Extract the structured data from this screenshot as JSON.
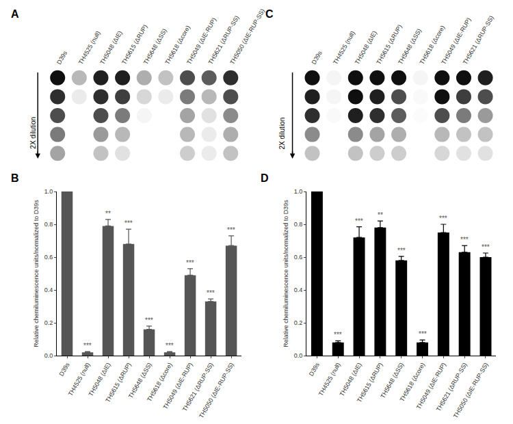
{
  "chart_data": [
    {
      "type": "dot_blot",
      "title": "A",
      "categories": [
        "D39s",
        "TH4525 (null)",
        "TH5048 (ΔIE)",
        "TH5615 (ΔRUP)",
        "TH5648 (ΔSS)",
        "TH5618 (Δcore)",
        "TH5049 (ΔIE-RUP)",
        "TH5621 (ΔRUP-SS)",
        "TH5050 (ΔIE-RUP-SS)"
      ],
      "intensity": [
        [
          0.95,
          0.35,
          0.9,
          0.9,
          0.4,
          0.3,
          0.75,
          0.7,
          0.85
        ],
        [
          0.85,
          0.1,
          0.85,
          0.8,
          0.2,
          0.1,
          0.6,
          0.35,
          0.75
        ],
        [
          0.75,
          0,
          0.75,
          0.6,
          0.05,
          0,
          0.45,
          0.15,
          0.55
        ],
        [
          0.6,
          0,
          0.5,
          0.35,
          0,
          0,
          0.35,
          0.1,
          0.4
        ],
        [
          0.45,
          0,
          0.3,
          0.15,
          0,
          0,
          0.25,
          0.1,
          0.3
        ]
      ],
      "clim": [
        0,
        1
      ],
      "dilution_label": "2X dilution",
      "tick_labels": "x"
    },
    {
      "type": "bar",
      "title": "B",
      "categories": [
        "D39s",
        "TH4525 (null)",
        "TH5048 (ΔIE)",
        "TH5615 (ΔRUP)",
        "TH5648 (ΔSS)",
        "TH5618 (Δcore)",
        "TH5049 (ΔIE-RUP)",
        "TH5621 (ΔRUP-SS)",
        "TH5050 (ΔIE-RUP-SS)"
      ],
      "values": [
        1.0,
        0.02,
        0.79,
        0.68,
        0.16,
        0.02,
        0.49,
        0.33,
        0.67
      ],
      "errors": [
        0,
        0.005,
        0.04,
        0.09,
        0.02,
        0.005,
        0.04,
        0.015,
        0.06
      ],
      "significance": [
        null,
        "***",
        "**",
        "***",
        "***",
        "***",
        "***",
        "***",
        "***"
      ],
      "color": "#555555",
      "ylabel": "Relative chemiluminescence units/normalized to D39s",
      "ylim": [
        0,
        1
      ],
      "yticks": [
        {
          "value": 0,
          "label": "0.0"
        },
        0.2,
        0.4,
        0.6,
        0.8,
        {
          "value": 1,
          "label": "1.0"
        }
      ],
      "grid": false
    },
    {
      "type": "dot_blot",
      "title": "C",
      "categories": [
        "D39s",
        "TH4525 (null)",
        "TH5048 (ΔIE)",
        "TH5615 (ΔRUP)",
        "TH5648 (ΔSS)",
        "TH5618 (Δcore)",
        "TH5049 (ΔIE-RUP)",
        "TH5621 (ΔRUP-SS)",
        "TH5050 (ΔIE-RUP-SS)"
      ],
      "intensity": [
        [
          0.95,
          0.05,
          0.95,
          0.95,
          0.95,
          0.05,
          0.95,
          0.95,
          0.9
        ],
        [
          0.9,
          0.05,
          0.95,
          0.9,
          0.75,
          0.03,
          0.95,
          0.8,
          0.75
        ],
        [
          0.85,
          0.03,
          0.9,
          0.85,
          0.7,
          0.02,
          0.75,
          0.6,
          0.5
        ],
        [
          0.55,
          0,
          0.55,
          0.45,
          0.4,
          0,
          0.35,
          0.3,
          0.3
        ],
        [
          0.3,
          0,
          0.3,
          0.25,
          0.25,
          0,
          0.2,
          0.15,
          0.15
        ]
      ],
      "clim": [
        0,
        1
      ],
      "dilution_label": "2X dilution",
      "tick_labels": "x"
    },
    {
      "type": "bar",
      "title": "D",
      "categories": [
        "D39s",
        "TH4525 (null)",
        "TH5048 (ΔIE)",
        "TH5615 (ΔRUP)",
        "TH5648 (ΔSS)",
        "TH5618 (Δcore)",
        "TH5049 (ΔIE-RUP)",
        "TH5621 (ΔRUP-SS)",
        "TH5050 (ΔIE-RUP-SS)"
      ],
      "values": [
        1.0,
        0.08,
        0.72,
        0.78,
        0.58,
        0.08,
        0.75,
        0.63,
        0.6
      ],
      "errors": [
        0,
        0.01,
        0.065,
        0.04,
        0.025,
        0.015,
        0.05,
        0.04,
        0.025
      ],
      "significance": [
        null,
        "***",
        "***",
        "**",
        "***",
        "***",
        "***",
        "***",
        "***"
      ],
      "color": "#000000",
      "ylabel": "Relative chemiluminescence units/normalized to D39s",
      "ylim": [
        0,
        1
      ],
      "yticks": [
        {
          "value": 0,
          "label": "0.0"
        },
        0.2,
        0.4,
        0.6,
        0.8,
        {
          "value": 1,
          "label": "1.0"
        }
      ],
      "grid": false
    }
  ]
}
